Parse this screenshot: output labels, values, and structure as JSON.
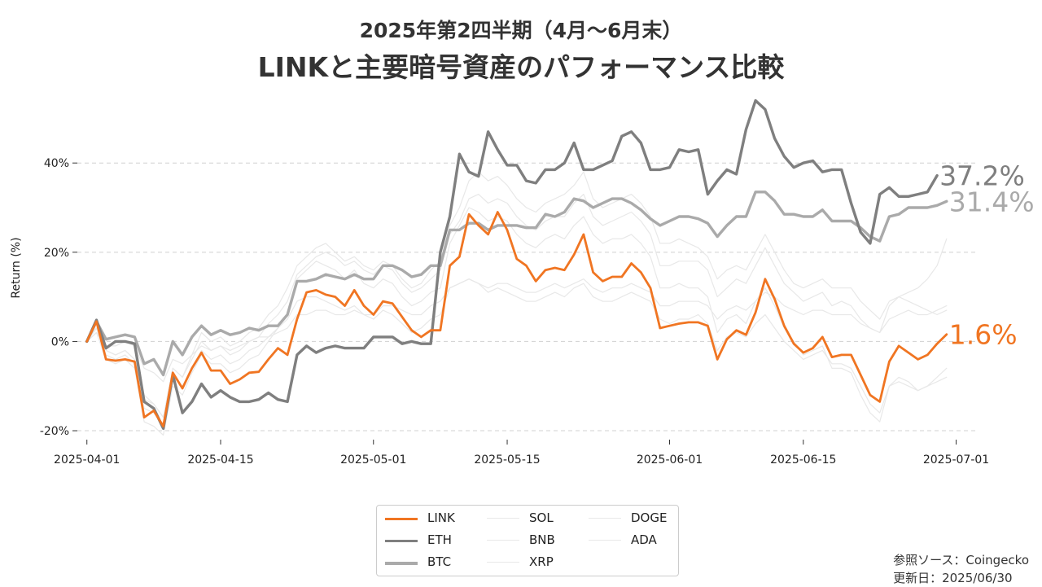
{
  "title": {
    "line1": "2025年第2四半期（4月～6月末）",
    "line2": "LINKと主要暗号資産のパフォーマンス比較"
  },
  "footer": {
    "source": "参照ソース：Coingecko",
    "updated": "更新日：2025/06/30"
  },
  "chart_data": {
    "type": "line",
    "ylabel": "Return (%)",
    "ylim": [
      -22,
      55
    ],
    "yticks": [
      -20,
      0,
      20,
      40
    ],
    "ytick_labels": [
      "-20%",
      "0%",
      "20%",
      "40%"
    ],
    "xlim": [
      "2025-03-31",
      "2025-07-03"
    ],
    "xticks": [
      "2025-04-01",
      "2025-04-15",
      "2025-05-01",
      "2025-05-15",
      "2025-06-01",
      "2025-06-15",
      "2025-07-01"
    ],
    "grid": "horizontal dashed",
    "legend": "bottom-center",
    "start_date": "2025-04-01",
    "colors": {
      "LINK": "#f07522",
      "ETH": "#7f7f7f",
      "BTC": "#aaaaaa",
      "SOL": "#e8e8e8",
      "BNB": "#e8e8e8",
      "XRP": "#e8e8e8",
      "DOGE": "#e8e8e8",
      "ADA": "#e8e8e8"
    },
    "end_labels": [
      {
        "name": "ETH",
        "text": "37.2%"
      },
      {
        "name": "BTC",
        "text": "31.4%"
      },
      {
        "name": "LINK",
        "text": "1.6%"
      }
    ],
    "series": [
      {
        "name": "LINK",
        "values": [
          0,
          4.5,
          -4,
          -4.3,
          -4,
          -4.5,
          -17,
          -15.5,
          -19,
          -7,
          -10.5,
          -6,
          -2.5,
          -6.5,
          -6.5,
          -9.5,
          -8.5,
          -7,
          -6.8,
          -4,
          -1.5,
          -3,
          5,
          11,
          11.5,
          10.5,
          10,
          8,
          11.5,
          8,
          6,
          9,
          8.5,
          5.5,
          2.5,
          1,
          2.5,
          2.5,
          17,
          19,
          28.5,
          26,
          24,
          29,
          25,
          18.5,
          17,
          13.5,
          16,
          16.5,
          16,
          19.5,
          24,
          15.5,
          13.5,
          14.5,
          14.5,
          17.5,
          15.5,
          12,
          3,
          3.5,
          4,
          4.3,
          4.3,
          3.5,
          -4,
          0.5,
          2.5,
          1.5,
          6.5,
          14,
          9.5,
          3.5,
          -0.5,
          -2.5,
          -1.5,
          1,
          -3.5,
          -3,
          -3,
          -7.5,
          -12,
          -13.5,
          -4.5,
          -1,
          -2.5,
          -4,
          -3,
          -0.5,
          1.6
        ]
      },
      {
        "name": "ETH",
        "values": [
          0,
          4.8,
          -1.5,
          0,
          0,
          -0.5,
          -13.5,
          -15,
          -19.5,
          -7.5,
          -16,
          -13.5,
          -9.5,
          -12.5,
          -11,
          -12.5,
          -13.5,
          -13.5,
          -13,
          -11.5,
          -13,
          -13.5,
          -3,
          -1,
          -2.5,
          -1.5,
          -1,
          -1.5,
          -1.5,
          -1.5,
          1,
          1,
          1,
          -0.5,
          0,
          -0.5,
          -0.5,
          20,
          28,
          42,
          38,
          37,
          47,
          43,
          39.5,
          39.5,
          36,
          35.5,
          38.5,
          38.5,
          40,
          44.5,
          38.5,
          38.5,
          39.5,
          40.5,
          46,
          47,
          44.5,
          38.5,
          38.5,
          39,
          43,
          42.5,
          43,
          33,
          36,
          38.5,
          37.5,
          47.5,
          54,
          52,
          45.5,
          41.5,
          39,
          40,
          40.5,
          38,
          38.5,
          38.5,
          31,
          24.5,
          22,
          33,
          34.5,
          32.5,
          32.5,
          33,
          33.5,
          37.2
        ]
      },
      {
        "name": "BTC",
        "values": [
          0,
          4.5,
          0.5,
          1,
          1.5,
          1,
          -5,
          -4,
          -7.5,
          0,
          -3,
          1,
          3.5,
          1.5,
          2.5,
          1.5,
          2,
          3,
          2.5,
          3.5,
          3.5,
          6,
          13.5,
          13.5,
          14,
          15,
          14.5,
          14,
          15,
          14,
          14,
          17,
          17,
          16,
          14.5,
          15,
          17,
          17,
          25,
          25,
          26.5,
          26.5,
          25,
          26,
          26,
          26,
          25.5,
          25.5,
          28.5,
          28,
          29,
          32,
          31.5,
          30,
          31,
          32,
          32,
          31,
          29.5,
          27.5,
          26,
          27,
          28,
          28,
          27.5,
          26.5,
          23.5,
          26,
          28,
          28,
          33.5,
          33.5,
          31.5,
          28.5,
          28.5,
          28,
          28,
          29.5,
          27,
          27,
          27,
          25.5,
          23.5,
          22.5,
          28,
          28.5,
          30,
          30,
          30,
          30.5,
          31.4
        ]
      },
      {
        "name": "SOL",
        "values": [
          0,
          3,
          -2,
          -3,
          -2,
          -4,
          -12,
          -14,
          -17,
          -6,
          -8,
          -3,
          2,
          0,
          1,
          -1,
          0,
          2,
          3,
          6,
          8,
          12,
          17,
          19,
          21,
          22,
          20,
          18,
          19,
          17,
          16,
          18,
          17,
          14,
          12,
          13,
          16,
          18,
          26,
          30,
          36,
          38,
          36,
          37,
          35,
          32,
          30,
          29,
          31,
          32,
          33,
          35,
          38,
          32,
          30,
          31,
          32,
          33,
          31,
          28,
          22,
          22,
          23,
          22,
          21,
          19,
          14,
          16,
          17,
          16,
          20,
          24,
          20,
          16,
          13,
          12,
          13,
          14,
          12,
          12,
          12,
          9,
          7,
          5,
          9,
          10,
          9,
          8,
          7,
          6,
          7
        ]
      },
      {
        "name": "BNB",
        "values": [
          0,
          2,
          -1,
          -1,
          0,
          -1,
          -6,
          -7,
          -9,
          -4,
          -5,
          -3,
          -1,
          -2,
          -1,
          -2,
          -1,
          0,
          1,
          1,
          2,
          3,
          6,
          6,
          7,
          7,
          6,
          6,
          7,
          6,
          6,
          8,
          8,
          7,
          6,
          6,
          8,
          9,
          12,
          13,
          14,
          13,
          12,
          13,
          13,
          12,
          11,
          11,
          12,
          13,
          12,
          13,
          14,
          12,
          11,
          12,
          12,
          13,
          12,
          11,
          8,
          8,
          9,
          9,
          9,
          8,
          5,
          7,
          8,
          7,
          9,
          11,
          10,
          8,
          7,
          6,
          7,
          7,
          6,
          6,
          6,
          4,
          3,
          2,
          5,
          6,
          7,
          6,
          6,
          7,
          8
        ]
      },
      {
        "name": "XRP",
        "values": [
          0,
          3,
          -3,
          -4,
          -3,
          -5,
          -15,
          -16,
          -19,
          -8,
          -10,
          -6,
          -2,
          -4,
          -3,
          -5,
          -4,
          -2,
          -1,
          1,
          3,
          5,
          9,
          10,
          10,
          9,
          8,
          7,
          8,
          6,
          5,
          7,
          6,
          4,
          2,
          3,
          5,
          6,
          12,
          13,
          14,
          13,
          11,
          12,
          11,
          10,
          9,
          9,
          10,
          11,
          10,
          12,
          13,
          10,
          9,
          9,
          10,
          11,
          10,
          9,
          5,
          4,
          5,
          5,
          6,
          4,
          -2,
          1,
          2,
          1,
          4,
          6,
          3,
          0,
          -2,
          -4,
          -3,
          -2,
          -5,
          -5,
          -6,
          -10,
          -14,
          -16,
          -10,
          -9,
          -10,
          -11,
          -10,
          -9,
          -8
        ]
      },
      {
        "name": "DOGE",
        "values": [
          0,
          2,
          -4,
          -5,
          -4,
          -6,
          -18,
          -19,
          -21,
          -10,
          -12,
          -7,
          -3,
          -5,
          -5,
          -7,
          -6,
          -4,
          -3,
          0,
          3,
          6,
          14,
          16,
          18,
          17,
          16,
          14,
          16,
          13,
          12,
          14,
          13,
          10,
          8,
          9,
          11,
          12,
          22,
          26,
          30,
          29,
          27,
          28,
          27,
          24,
          22,
          21,
          23,
          24,
          23,
          26,
          28,
          24,
          22,
          23,
          23,
          24,
          22,
          19,
          12,
          12,
          13,
          12,
          12,
          10,
          2,
          5,
          6,
          4,
          9,
          12,
          8,
          3,
          0,
          -3,
          -2,
          -1,
          -6,
          -6,
          -7,
          -12,
          -16,
          -18,
          -10,
          -8,
          -9,
          -11,
          -10,
          -8,
          -6
        ]
      },
      {
        "name": "ADA",
        "values": [
          0,
          3,
          -2,
          -3,
          -2,
          -4,
          -13,
          -14,
          -17,
          -6,
          -8,
          -4,
          0,
          -2,
          -1,
          -3,
          -2,
          0,
          1,
          4,
          6,
          9,
          15,
          17,
          19,
          20,
          19,
          17,
          18,
          16,
          15,
          17,
          16,
          13,
          11,
          12,
          14,
          16,
          24,
          27,
          32,
          33,
          31,
          32,
          31,
          28,
          26,
          25,
          27,
          28,
          28,
          31,
          33,
          28,
          26,
          27,
          28,
          29,
          27,
          24,
          17,
          17,
          18,
          18,
          18,
          16,
          10,
          12,
          14,
          13,
          17,
          21,
          17,
          13,
          11,
          9,
          10,
          11,
          8,
          9,
          8,
          5,
          3,
          2,
          8,
          10,
          11,
          12,
          14,
          17,
          23
        ]
      }
    ]
  }
}
